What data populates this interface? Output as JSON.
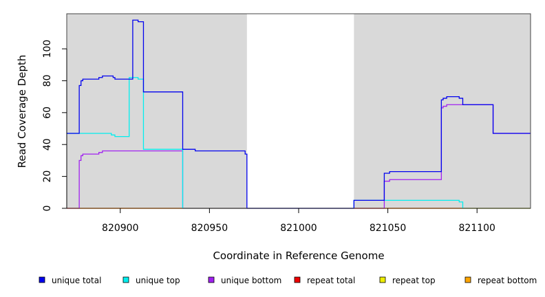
{
  "chart_data": {
    "type": "line",
    "step": true,
    "xlabel": "Coordinate in Reference Genome",
    "ylabel": "Read Coverage Depth",
    "xlim": [
      820870,
      821130
    ],
    "ylim": [
      0,
      122
    ],
    "x_ticks": [
      820900,
      820950,
      821000,
      821050,
      821100
    ],
    "y_ticks": [
      0,
      20,
      40,
      60,
      80,
      100
    ],
    "shaded_regions": [
      {
        "x0": 820870,
        "x1": 820971,
        "color": "#d9d9d9"
      },
      {
        "x0": 821031,
        "x1": 821130,
        "color": "#d9d9d9"
      }
    ],
    "legend_position": "bottom",
    "series": [
      {
        "name": "unique total",
        "color": "#0000ee",
        "points": [
          [
            820870,
            47
          ],
          [
            820877,
            77
          ],
          [
            820878,
            80
          ],
          [
            820879,
            81
          ],
          [
            820883,
            81
          ],
          [
            820888,
            82
          ],
          [
            820890,
            83
          ],
          [
            820896,
            82
          ],
          [
            820897,
            81
          ],
          [
            820900,
            81
          ],
          [
            820905,
            81
          ],
          [
            820907,
            118
          ],
          [
            820910,
            117
          ],
          [
            820913,
            73
          ],
          [
            820935,
            37
          ],
          [
            820942,
            36
          ],
          [
            820951,
            36
          ],
          [
            820954,
            36
          ],
          [
            820961,
            36
          ],
          [
            820970,
            34
          ],
          [
            820971,
            0
          ],
          [
            821031,
            5
          ],
          [
            821048,
            22
          ],
          [
            821051,
            23
          ],
          [
            821080,
            68
          ],
          [
            821081,
            69
          ],
          [
            821083,
            70
          ],
          [
            821090,
            69
          ],
          [
            821092,
            65
          ],
          [
            821109,
            47
          ],
          [
            821130,
            47
          ]
        ]
      },
      {
        "name": "unique top",
        "color": "#00eeee",
        "points": [
          [
            820870,
            47
          ],
          [
            820895,
            46
          ],
          [
            820897,
            45
          ],
          [
            820905,
            82
          ],
          [
            820910,
            81
          ],
          [
            820913,
            37
          ],
          [
            820935,
            0
          ],
          [
            821031,
            5
          ],
          [
            821090,
            4
          ],
          [
            821092,
            0
          ],
          [
            821130,
            0
          ]
        ]
      },
      {
        "name": "unique bottom",
        "color": "#a020f0",
        "points": [
          [
            820870,
            0
          ],
          [
            820877,
            30
          ],
          [
            820878,
            33
          ],
          [
            820879,
            34
          ],
          [
            820888,
            35
          ],
          [
            820890,
            36
          ],
          [
            820935,
            0
          ],
          [
            821048,
            17
          ],
          [
            821051,
            18
          ],
          [
            821080,
            63
          ],
          [
            821081,
            64
          ],
          [
            821083,
            65
          ],
          [
            821109,
            47
          ],
          [
            821130,
            47
          ]
        ]
      },
      {
        "name": "repeat total",
        "color": "#ee0000",
        "points": [
          [
            820870,
            0
          ],
          [
            821130,
            0
          ]
        ]
      },
      {
        "name": "repeat top",
        "color": "#eeee00",
        "points": [
          [
            820870,
            0
          ],
          [
            821130,
            0
          ]
        ]
      },
      {
        "name": "repeat bottom",
        "color": "#ffa500",
        "points": [
          [
            820870,
            0
          ],
          [
            821130,
            0
          ]
        ]
      }
    ]
  }
}
